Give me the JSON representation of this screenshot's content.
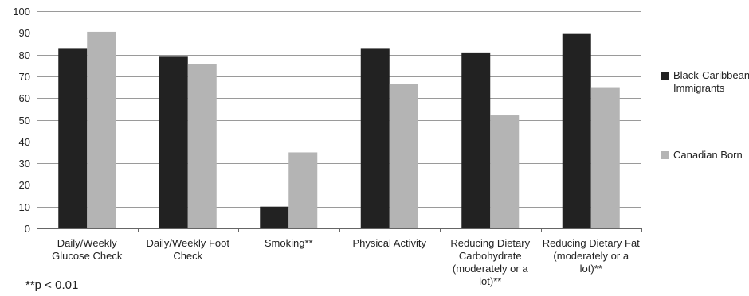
{
  "chart_data": {
    "type": "bar",
    "categories": [
      [
        "Daily/Weekly",
        "Glucose Check"
      ],
      [
        "Daily/Weekly Foot",
        "Check"
      ],
      [
        "Smoking**"
      ],
      [
        "Physical Activity"
      ],
      [
        "Reducing Dietary",
        "Carbohydrate",
        "(moderately or a",
        "lot)**"
      ],
      [
        "Reducing Dietary Fat",
        "(moderately or a",
        "lot)**"
      ]
    ],
    "series": [
      {
        "name": [
          "Black-Caribbean",
          "Immigrants"
        ],
        "color": "#222222",
        "values": [
          83,
          79,
          10,
          83,
          81,
          89.5
        ]
      },
      {
        "name": [
          "Canadian Born"
        ],
        "color": "#b4b4b4",
        "values": [
          90.5,
          75.5,
          35,
          66.5,
          52,
          65
        ]
      }
    ],
    "ylim": [
      0,
      100
    ],
    "yticks": [
      0,
      10,
      20,
      30,
      40,
      50,
      60,
      70,
      80,
      90,
      100
    ],
    "grid": true,
    "legend_position": "right",
    "footnote": "**p < 0.01"
  }
}
